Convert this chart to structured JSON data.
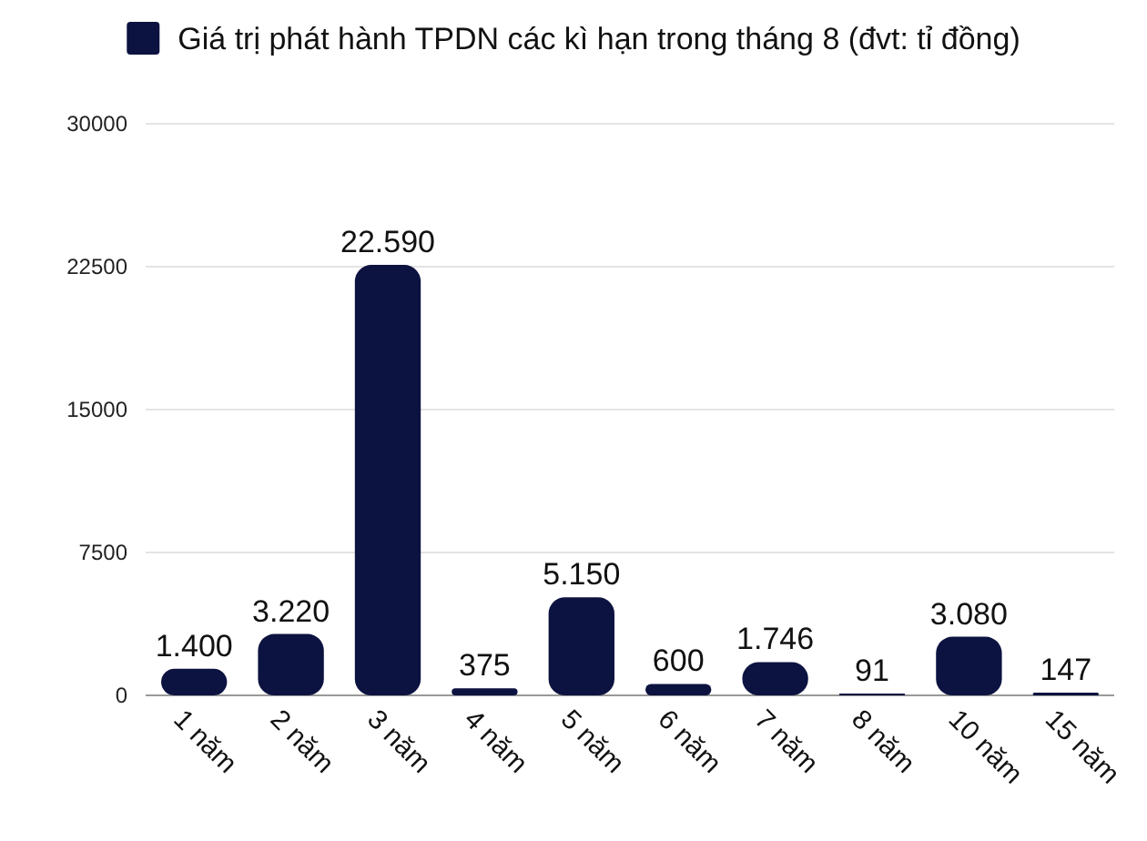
{
  "chart_data": {
    "type": "bar",
    "categories": [
      "1 năm",
      "2 năm",
      "3 năm",
      "4 năm",
      "5 năm",
      "6 năm",
      "7 năm",
      "8 năm",
      "10 năm",
      "15 năm"
    ],
    "series": [
      {
        "name": "Giá trị phát hành TPDN các kì hạn trong tháng 8 (đvt: tỉ đồng)",
        "color": "#0c1340",
        "values": [
          1400,
          3220,
          22590,
          375,
          5150,
          600,
          1746,
          91,
          3080,
          147
        ],
        "value_labels": [
          "1.400",
          "3.220",
          "22.590",
          "375",
          "5.150",
          "600",
          "1.746",
          "91",
          "3.080",
          "147"
        ]
      }
    ],
    "ylim": [
      0,
      30000
    ],
    "yticks": [
      0,
      7500,
      15000,
      22500,
      30000
    ],
    "grid": "y",
    "legend": "top"
  }
}
